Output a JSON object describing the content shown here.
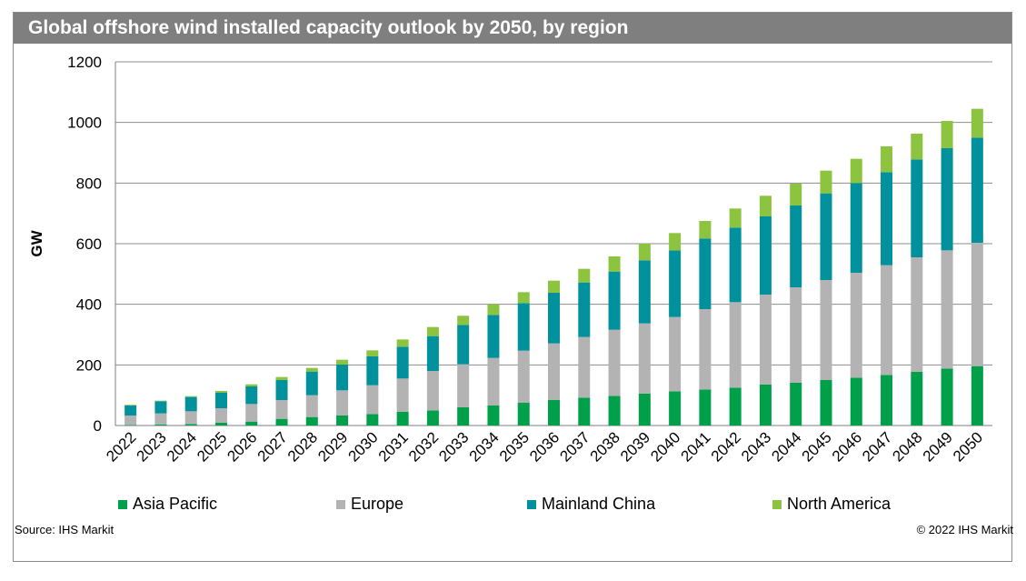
{
  "title": "Global offshore wind installed capacity outlook by 2050, by region",
  "source": "Source: IHS Markit",
  "copyright": "© 2022 IHS Markit",
  "colors": {
    "asia_pacific": "#00a04a",
    "europe": "#b3b3b3",
    "mainland_china": "#00919c",
    "north_america": "#8cc43f",
    "title_bar": "#7f7f7f",
    "gridline": "#8c8c8c"
  },
  "legend": [
    {
      "label": "Asia Pacific",
      "color": "#00a04a"
    },
    {
      "label": "Europe",
      "color": "#b3b3b3"
    },
    {
      "label": "Mainland China",
      "color": "#00919c"
    },
    {
      "label": "North America",
      "color": "#8cc43f"
    }
  ],
  "chart_data": {
    "type": "bar",
    "stacked": true,
    "title": "Global offshore wind installed capacity outlook by 2050, by region",
    "xlabel": "",
    "ylabel": "GW",
    "ylim": [
      0,
      1200
    ],
    "yticks": [
      0,
      200,
      400,
      600,
      800,
      1000,
      1200
    ],
    "grid": true,
    "legend_position": "bottom",
    "categories": [
      "2022",
      "2023",
      "2024",
      "2025",
      "2026",
      "2027",
      "2028",
      "2029",
      "2030",
      "2031",
      "2032",
      "2033",
      "2034",
      "2035",
      "2036",
      "2037",
      "2038",
      "2039",
      "2040",
      "2041",
      "2042",
      "2043",
      "2044",
      "2045",
      "2046",
      "2047",
      "2048",
      "2049",
      "2050"
    ],
    "series": [
      {
        "name": "Asia Pacific",
        "color": "#00a04a",
        "values": [
          2,
          3,
          5,
          9,
          13,
          22,
          28,
          33,
          38,
          45,
          50,
          60,
          66,
          75,
          84,
          92,
          98,
          105,
          113,
          119,
          125,
          135,
          141,
          150,
          158,
          167,
          177,
          188,
          196
        ]
      },
      {
        "name": "Europe",
        "color": "#b3b3b3",
        "values": [
          31,
          37,
          42,
          48,
          58,
          62,
          72,
          83,
          95,
          110,
          130,
          142,
          157,
          172,
          187,
          200,
          218,
          232,
          245,
          265,
          282,
          297,
          315,
          330,
          346,
          362,
          378,
          390,
          407
        ]
      },
      {
        "name": "Mainland China",
        "color": "#00919c",
        "values": [
          33,
          40,
          47,
          52,
          58,
          66,
          78,
          85,
          95,
          105,
          115,
          130,
          142,
          157,
          167,
          180,
          192,
          208,
          220,
          233,
          246,
          258,
          270,
          286,
          296,
          307,
          323,
          337,
          347
        ]
      },
      {
        "name": "North America",
        "color": "#8cc43f",
        "values": [
          2,
          2,
          3,
          5,
          7,
          10,
          12,
          16,
          20,
          24,
          30,
          30,
          35,
          36,
          40,
          45,
          50,
          55,
          57,
          58,
          63,
          68,
          72,
          75,
          80,
          85,
          85,
          90,
          95
        ]
      }
    ]
  }
}
